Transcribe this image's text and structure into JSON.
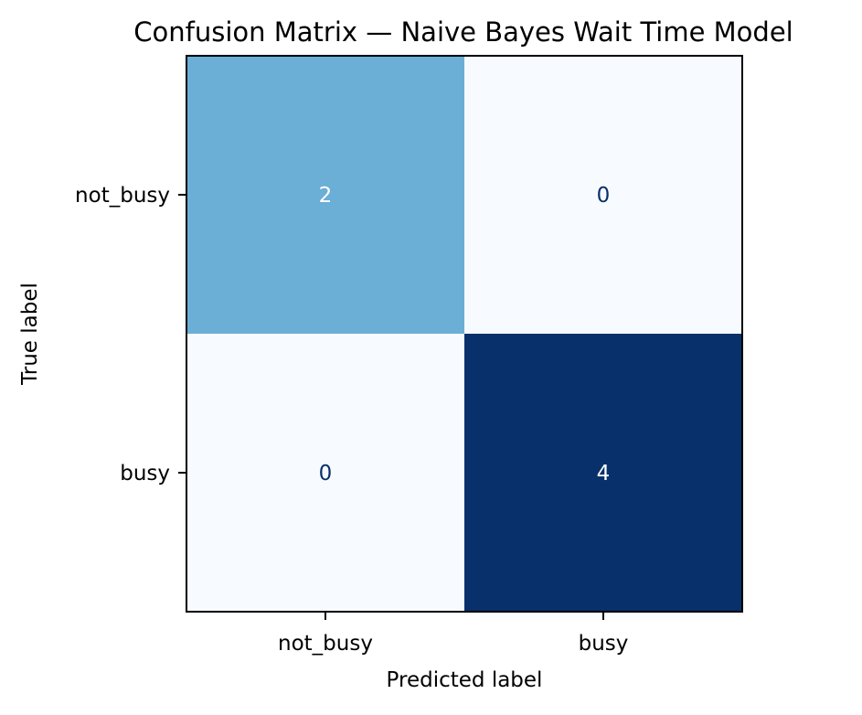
{
  "chart_data": {
    "type": "heatmap",
    "title": "Confusion Matrix — Naive Bayes Wait Time Model",
    "xlabel": "Predicted label",
    "ylabel": "True label",
    "x_categories": [
      "not_busy",
      "busy"
    ],
    "y_categories": [
      "not_busy",
      "busy"
    ],
    "values": [
      [
        2,
        0
      ],
      [
        0,
        4
      ]
    ],
    "colormap": "Blues",
    "vmin": 0,
    "vmax": 4,
    "colorbar": false,
    "grid": false,
    "colors": {
      "low": "#f7fbff",
      "mid": "#6baed6",
      "high": "#08306b",
      "text_on_dark": "#ffffff",
      "text_on_light": "#08306b",
      "frame": "#000000"
    }
  }
}
